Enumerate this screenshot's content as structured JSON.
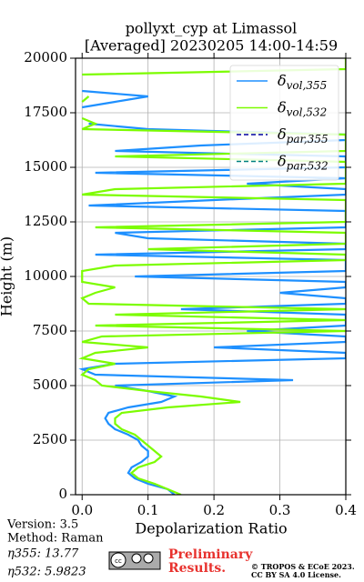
{
  "chart_data": {
    "type": "profile",
    "title": "pollyxt_cyp at Limassol",
    "subtitle": "[Averaged] 20230205 14:00-14:59",
    "xlabel": "Depolarization Ratio",
    "ylabel": "Height (m)",
    "y": [
      0,
      250,
      500,
      750,
      1000,
      1250,
      1500,
      1750,
      2000,
      2250,
      2500,
      2750,
      3000,
      3250,
      3500,
      3750,
      4000,
      4250,
      4500,
      4750,
      5000,
      5250,
      5500,
      5750,
      6000,
      6250,
      6500,
      6750,
      7000,
      7250,
      7500,
      7750,
      8000,
      8250,
      8500,
      8750,
      9000,
      9250,
      9500,
      9750,
      10000,
      10250,
      10500,
      10750,
      11000,
      11250,
      11500,
      11750,
      12000,
      12250,
      12500,
      12750,
      13000,
      13250,
      13500,
      13750,
      14000,
      14250,
      14500,
      14750,
      15000,
      15250,
      15500,
      15750,
      16000,
      16250,
      16500,
      16750,
      17000,
      17250,
      17500,
      17750,
      18000,
      18250,
      18500,
      18750,
      19000,
      19250,
      19500,
      19750,
      20000
    ],
    "series": [
      {
        "name": "δvol,355",
        "color": "#1e90ff",
        "dash": "solid",
        "values": [
          0.14,
          0.13,
          0.1,
          0.08,
          0.07,
          0.075,
          0.09,
          0.1,
          0.1,
          0.09,
          0.085,
          0.07,
          0.05,
          0.04,
          0.035,
          0.04,
          0.07,
          0.12,
          0.14,
          0.1,
          0.05,
          0.32,
          0.02,
          0.0,
          0.05,
          0.4,
          0.4,
          0.2,
          0.4,
          0.4,
          0.25,
          0.4,
          0.4,
          0.4,
          0.15,
          0.4,
          0.4,
          0.3,
          0.4,
          0.4,
          0.08,
          0.4,
          0.4,
          0.4,
          0.02,
          0.4,
          0.4,
          0.1,
          0.05,
          0.4,
          0.4,
          0.4,
          0.4,
          0.01,
          0.2,
          0.4,
          0.4,
          0.25,
          0.4,
          0.02,
          0.4,
          0.4,
          0.4,
          0.05,
          0.18,
          0.4,
          0.4,
          0.1,
          0.01,
          null,
          null,
          0.0,
          0.05,
          0.1,
          0.0,
          null,
          null,
          null,
          0.02,
          null,
          0.4
        ]
      },
      {
        "name": "δvol,532",
        "color": "#7cfc00",
        "dash": "solid",
        "values": [
          0.15,
          0.13,
          0.11,
          0.085,
          0.075,
          0.085,
          0.11,
          0.12,
          0.11,
          0.1,
          0.09,
          0.08,
          0.06,
          0.05,
          0.05,
          0.06,
          0.13,
          0.24,
          0.18,
          0.1,
          0.03,
          0.02,
          0.0,
          0.01,
          0.05,
          0.0,
          0.02,
          0.1,
          0.0,
          0.03,
          0.4,
          0.02,
          0.4,
          0.05,
          0.4,
          0.01,
          0.0,
          0.02,
          0.05,
          0.0,
          0.0,
          0.0,
          0.05,
          0.4,
          0.4,
          0.1,
          0.4,
          0.4,
          0.4,
          0.02,
          0.4,
          0.4,
          0.4,
          0.4,
          0.4,
          0.0,
          0.05,
          0.4,
          0.4,
          0.4,
          0.4,
          0.4,
          0.05,
          0.4,
          0.4,
          0.4,
          0.4,
          0.0,
          0.02,
          0.0,
          null,
          null,
          0.0,
          0.01,
          null,
          null,
          null,
          0.0,
          0.4,
          0.4,
          0.4
        ]
      },
      {
        "name": "δpar,355",
        "color": "#0000a0",
        "dash": "dashed"
      },
      {
        "name": "δpar,532",
        "color": "#008080",
        "dash": "dashed"
      }
    ],
    "xlim": [
      -0.01,
      0.4
    ],
    "xticks": [
      {
        "value": 0,
        "label": "0.0"
      },
      0.1,
      0.2,
      0.3,
      0.4
    ],
    "ylim": [
      0,
      20000
    ],
    "yticks": [
      0,
      2500,
      5000,
      7500,
      10000,
      12500,
      15000,
      17500,
      20000
    ],
    "grid": true,
    "legend": "upper right"
  },
  "footer": {
    "version": "Version: 3.5",
    "method": "Method: Raman",
    "eta355": "η355:  13.77",
    "eta532": "η532: 5.9823",
    "preliminary": [
      "Preliminary",
      "Results."
    ],
    "copyright": [
      "© TROPOS & ECoE 2023.",
      "CC BY SA 4.0 License."
    ]
  }
}
